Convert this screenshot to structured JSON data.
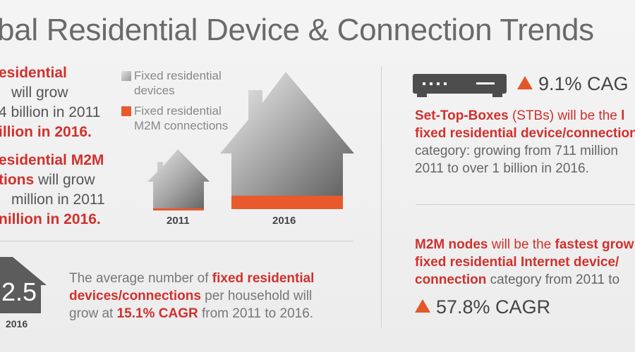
{
  "title": "bal Residential Device & Connection Trends",
  "stat1": {
    "l1": "esidential",
    "l2": "will grow",
    "l3": "4 billion in 2011",
    "l4": "illion in 2016."
  },
  "stat2": {
    "l1": "esidential M2M",
    "l2a": "tions",
    "l2b": " will grow",
    "l3": "million in 2011",
    "l4": "nillion in 2016."
  },
  "legend": {
    "fixed_devices": "Fixed residential devices",
    "m2m": "Fixed residential M2M connections",
    "fixed_color": "#bdbdbd",
    "m2m_color": "#e8592b"
  },
  "houses": {
    "small_year": "2011",
    "large_year": "2016"
  },
  "household": {
    "value": "2.5",
    "year": "2016",
    "p1": "The average number of ",
    "p1r": "fixed residential",
    "p2r": "devices/connections",
    "p2": " per household will",
    "p3": "grow at ",
    "p3r": "15.1% CAGR",
    "p3b": " from 2011 to 2016."
  },
  "stb": {
    "cagr": "9.1% CAG",
    "l1a": "Set-Top-Boxes",
    "l1b": " (STBs) will be the ",
    "l1c": "l",
    "l2": "fixed residential device/connection",
    "l3": "category: growing from 711 million",
    "l4": "2011 to over 1 billion in 2016."
  },
  "m2m": {
    "l1a": "M2M nodes",
    "l1b": " will be the ",
    "l1c": "fastest grow",
    "l2": "fixed residential Internet device/",
    "l3a": "connection",
    "l3b": " category from 2011 to",
    "cagr": "57.8% CAGR"
  },
  "colors": {
    "accent_red": "#d0312d",
    "triangle_orange": "#e2582a"
  }
}
